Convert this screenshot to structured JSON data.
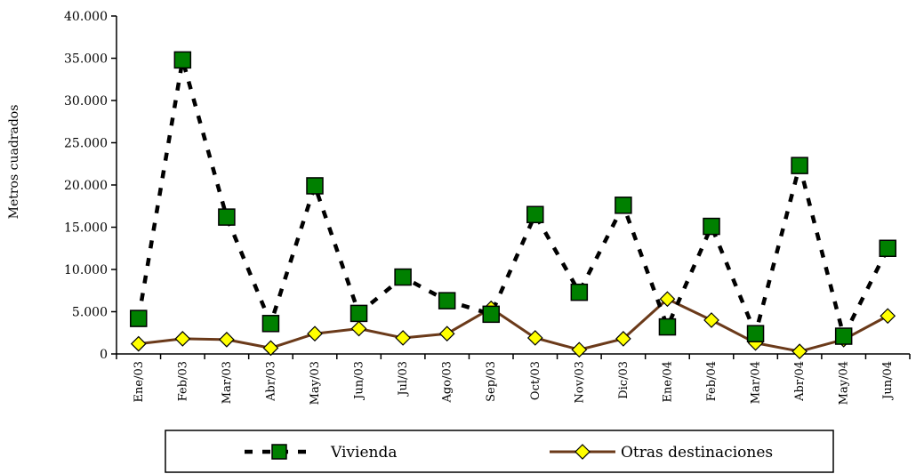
{
  "chart_data": {
    "type": "line",
    "title": "",
    "xlabel": "",
    "ylabel": "Metros cuadrados",
    "ylim": [
      0,
      40000
    ],
    "yticks": [
      0,
      5000,
      10000,
      15000,
      20000,
      25000,
      30000,
      35000,
      40000
    ],
    "ytick_labels": [
      "0",
      "5.000",
      "10.000",
      "15.000",
      "20.000",
      "25.000",
      "30.000",
      "35.000",
      "40.000"
    ],
    "categories": [
      "Ene/03",
      "Feb/03",
      "Mar/03",
      "Abr/03",
      "May/03",
      "Jun/03",
      "Jul/03",
      "Ago/03",
      "Sep/03",
      "Oct/03",
      "Nov/03",
      "Dic/03",
      "Ene/04",
      "Feb/04",
      "Mar/04",
      "Abr/04",
      "May/04",
      "Jun/04"
    ],
    "series": [
      {
        "name": "Vivienda",
        "color": "#008000",
        "line_color": "#000000",
        "line_style": "dashed",
        "marker": "square",
        "values": [
          4200,
          34800,
          16200,
          3600,
          19900,
          4800,
          9100,
          6300,
          4700,
          16500,
          7300,
          17600,
          3200,
          15100,
          2400,
          22300,
          2100,
          12500
        ]
      },
      {
        "name": "Otras destinaciones",
        "color": "#FFFF00",
        "line_color": "#6B3A1A",
        "line_style": "solid",
        "marker": "diamond",
        "values": [
          1200,
          1800,
          1700,
          700,
          2400,
          3000,
          1900,
          2400,
          5400,
          1900,
          500,
          1800,
          6500,
          4000,
          1300,
          300,
          1700,
          4500
        ]
      }
    ],
    "grid": false,
    "legend_position": "bottom"
  }
}
